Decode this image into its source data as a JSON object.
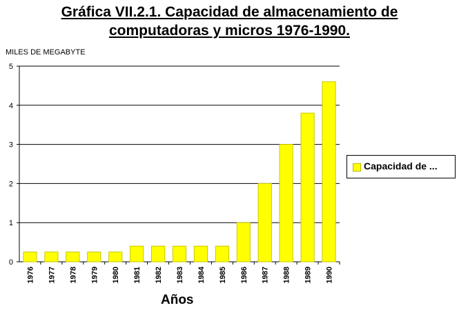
{
  "chart_data": {
    "type": "bar",
    "title_line1": "Gráfica VII.2.1. Capacidad de almacenamiento de",
    "title_line2": "computadoras y micros 1976-1990.",
    "ylabel": "MILES DE MEGABYTE",
    "xlabel": "Años",
    "categories": [
      "1976",
      "1977",
      "1978",
      "1979",
      "1980",
      "1981",
      "1982",
      "1983",
      "1984",
      "1985",
      "1986",
      "1987",
      "1988",
      "1989",
      "1990"
    ],
    "series": [
      {
        "name": "Capacidad de ...",
        "values": [
          0.25,
          0.25,
          0.25,
          0.25,
          0.25,
          0.4,
          0.4,
          0.4,
          0.4,
          0.4,
          1,
          2,
          3,
          3.8,
          4.6
        ]
      }
    ],
    "yticks": [
      "0",
      "1",
      "2",
      "3",
      "4",
      "5"
    ],
    "ylim": [
      0,
      5
    ],
    "grid": true,
    "legend_position": "right",
    "bar_color": "#ffff00",
    "bar_edge_color": "#c8c800"
  }
}
